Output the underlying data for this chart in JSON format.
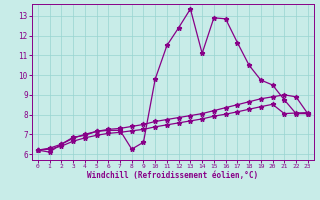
{
  "xlabel": "Windchill (Refroidissement éolien,°C)",
  "bg_color": "#c8ece8",
  "line_color": "#880088",
  "xlim": [
    -0.5,
    23.5
  ],
  "ylim": [
    5.7,
    13.6
  ],
  "xticks": [
    0,
    1,
    2,
    3,
    4,
    5,
    6,
    7,
    8,
    9,
    10,
    11,
    12,
    13,
    14,
    15,
    16,
    17,
    18,
    19,
    20,
    21,
    22,
    23
  ],
  "yticks": [
    6,
    7,
    8,
    9,
    10,
    11,
    12,
    13
  ],
  "curve1_x": [
    0,
    1,
    2,
    3,
    4,
    5,
    6,
    7,
    8,
    9,
    10,
    11,
    12,
    13,
    14,
    15,
    16,
    17,
    18,
    19,
    20,
    21,
    22,
    23
  ],
  "curve1_y": [
    6.2,
    6.1,
    6.5,
    6.85,
    6.95,
    7.15,
    7.2,
    7.2,
    6.25,
    6.6,
    9.8,
    11.5,
    12.4,
    13.35,
    11.1,
    12.9,
    12.85,
    11.65,
    10.5,
    9.75,
    9.5,
    8.75,
    8.05,
    8.05
  ],
  "curve2_x": [
    0,
    1,
    2,
    3,
    4,
    5,
    6,
    7,
    8,
    9,
    10,
    11,
    12,
    13,
    14,
    15,
    16,
    17,
    18,
    19,
    20,
    21,
    22,
    23
  ],
  "curve2_y": [
    6.2,
    6.3,
    6.5,
    6.8,
    7.0,
    7.15,
    7.25,
    7.3,
    7.4,
    7.5,
    7.65,
    7.75,
    7.85,
    7.95,
    8.05,
    8.2,
    8.35,
    8.5,
    8.65,
    8.8,
    8.9,
    9.0,
    8.9,
    8.05
  ],
  "curve3_x": [
    0,
    1,
    2,
    3,
    4,
    5,
    6,
    7,
    8,
    9,
    10,
    11,
    12,
    13,
    14,
    15,
    16,
    17,
    18,
    19,
    20,
    21,
    22,
    23
  ],
  "curve3_y": [
    6.2,
    6.25,
    6.4,
    6.65,
    6.82,
    6.95,
    7.05,
    7.1,
    7.18,
    7.25,
    7.38,
    7.48,
    7.58,
    7.68,
    7.78,
    7.92,
    8.02,
    8.14,
    8.27,
    8.4,
    8.52,
    8.05,
    8.08,
    8.1
  ]
}
